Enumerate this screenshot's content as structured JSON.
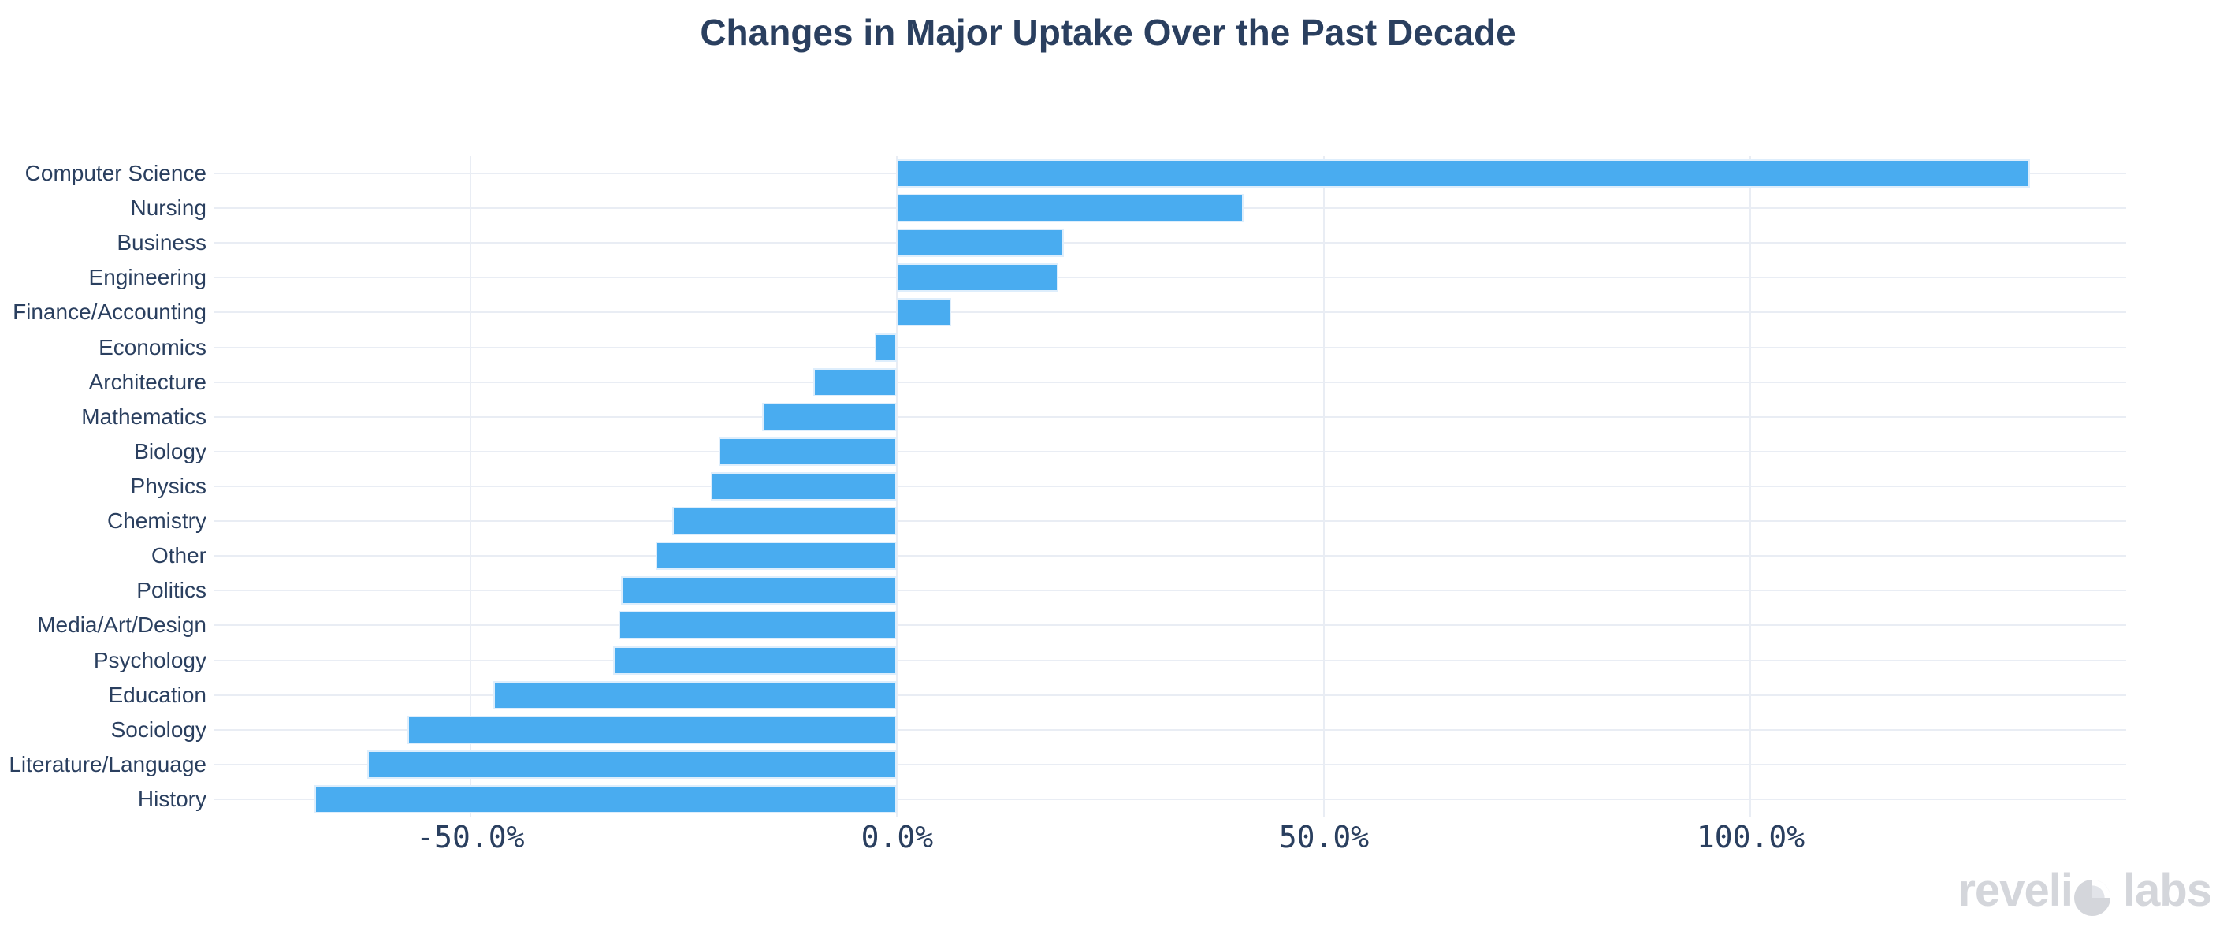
{
  "title": "Changes in Major Uptake Over the Past Decade",
  "watermark": {
    "before_o": "reveli",
    "after_o": "labs",
    "full_name": "revelio labs"
  },
  "chart_data": {
    "type": "bar",
    "orientation": "horizontal",
    "title": "Changes in Major Uptake Over the Past Decade",
    "xlabel": "",
    "ylabel": "",
    "value_unit": "%",
    "grid": true,
    "legend": null,
    "xlim": [
      -80,
      144
    ],
    "categories": [
      "Computer Science",
      "Nursing",
      "Business",
      "Engineering",
      "Finance/Accounting",
      "Economics",
      "Architecture",
      "Mathematics",
      "Biology",
      "Physics",
      "Chemistry",
      "Other",
      "Politics",
      "Media/Art/Design",
      "Psychology",
      "Education",
      "Sociology",
      "Literature/Language",
      "History"
    ],
    "values": [
      132.7,
      40.6,
      19.5,
      18.9,
      6.3,
      -2.6,
      -9.8,
      -15.8,
      -20.9,
      -21.8,
      -26.4,
      -28.3,
      -32.4,
      -32.6,
      -33.3,
      -47.3,
      -57.4,
      -62.1,
      -68.3
    ],
    "x_ticks": [
      {
        "value": -50,
        "label": "-50.0%"
      },
      {
        "value": 0,
        "label": "0.0%"
      },
      {
        "value": 50,
        "label": "50.0%"
      },
      {
        "value": 100,
        "label": "100.0%"
      }
    ],
    "colors": {
      "bar": "#49acf0",
      "bar_edge": "#deeefc",
      "grid": "#e9edf4",
      "text": "#2a3f5f",
      "watermark": "#d4d6db"
    }
  }
}
